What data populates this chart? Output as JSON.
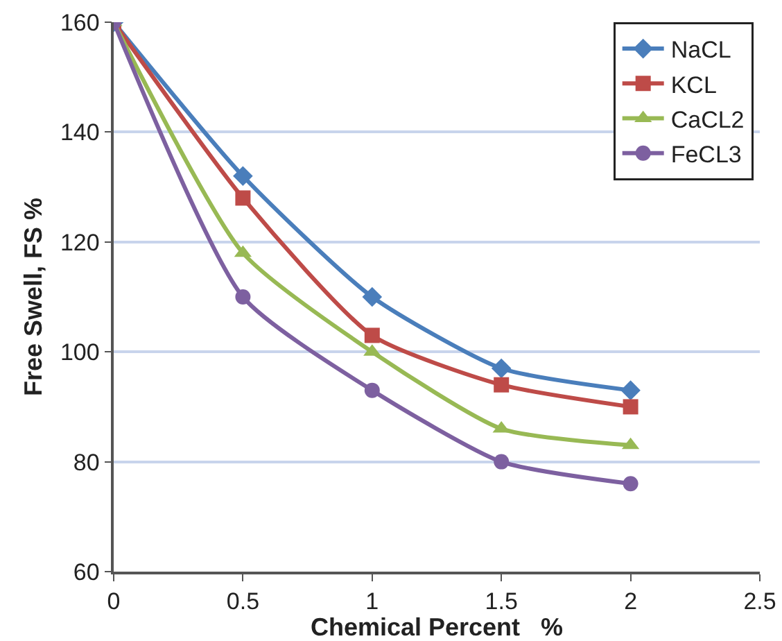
{
  "chart_data": {
    "type": "line",
    "xlabel": "Chemical Percent   %",
    "ylabel": "Free Swell, FS %",
    "x": [
      0,
      0.5,
      1,
      1.5,
      2
    ],
    "series": [
      {
        "name": "NaCL",
        "color": "#4a7ebb",
        "marker": "diamond",
        "values": [
          160,
          132,
          110,
          97,
          93
        ]
      },
      {
        "name": "KCL",
        "color": "#be4b48",
        "marker": "square",
        "values": [
          160,
          128,
          103,
          94,
          90
        ]
      },
      {
        "name": "CaCL2",
        "color": "#98b954",
        "marker": "triangle",
        "values": [
          160,
          118,
          100,
          86,
          83
        ]
      },
      {
        "name": "FeCL3",
        "color": "#7d60a0",
        "marker": "circle",
        "values": [
          160,
          110,
          93,
          80,
          76
        ]
      }
    ],
    "xlim": [
      0,
      2.5
    ],
    "xticks": [
      0,
      0.5,
      1,
      1.5,
      2,
      2.5
    ],
    "ylim": [
      60,
      160
    ],
    "yticks": [
      60,
      80,
      100,
      120,
      140,
      160
    ],
    "grid": "y",
    "legend": "top right",
    "line_style": "solid"
  }
}
